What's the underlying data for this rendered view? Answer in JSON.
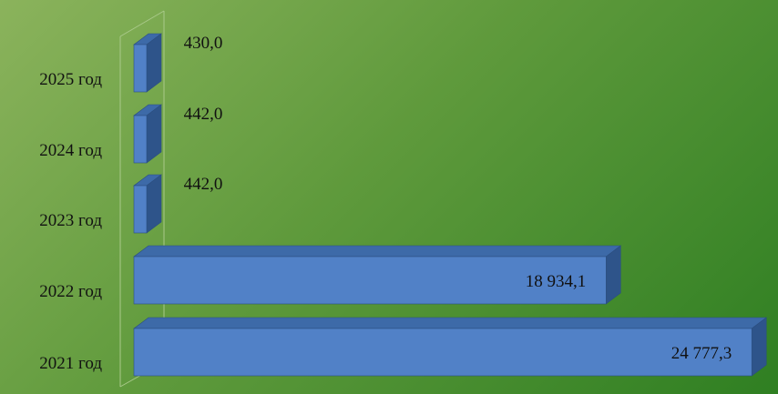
{
  "chart_data": {
    "type": "bar",
    "orientation": "horizontal",
    "three_d": true,
    "categories": [
      "2021 год",
      "2022 год",
      "2023 год",
      "2024 год",
      "2025 год"
    ],
    "values": [
      24777.3,
      18934.1,
      442.0,
      442.0,
      430.0
    ],
    "value_labels": [
      "24 777,3",
      "18 934,1",
      "442,0",
      "442,0",
      "430,0"
    ],
    "xlim": [
      0,
      25500
    ],
    "grid": false,
    "legend": "none",
    "colors": {
      "bar_front": "#5181c7",
      "bar_top": "#3d6aa8",
      "bar_side": "#2e548a",
      "bar_edge": "#2b4f80",
      "axis": "#a9c98a",
      "background_start": "#8bb35c",
      "background_end": "#2f7f22"
    }
  }
}
